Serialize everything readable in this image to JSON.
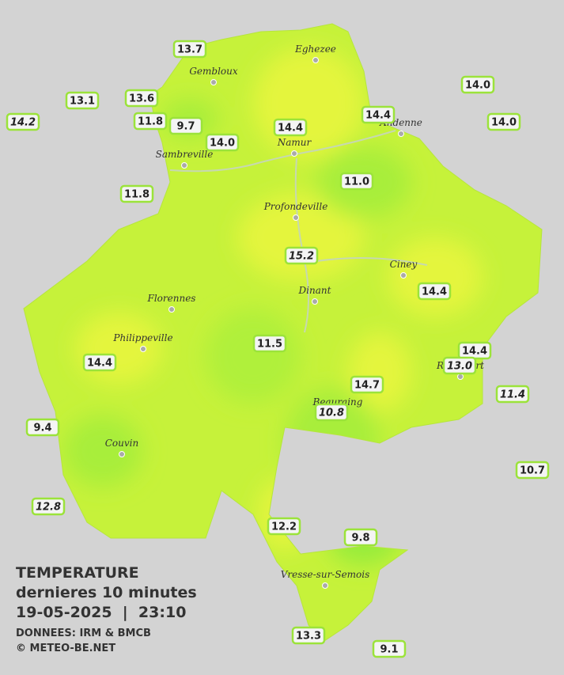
{
  "title": "TEMPERATURE",
  "subtitle": "dernieres 10 minutes",
  "datetime": "19-05-2025  |  23:10",
  "source": "DONNEES: IRM & BMCB",
  "credit": "© METEO-BE.NET",
  "cities": [
    "Eghezee",
    "Gembloux",
    "Andenne",
    "Namur",
    "Sambreville",
    "Profondeville",
    "Ciney",
    "Dinant",
    "Florennes",
    "Philippeville",
    "Rochefort",
    "Beauraing",
    "Couvin",
    "Vresse-sur-Semois"
  ],
  "stations": [
    {
      "label": "13.7",
      "italic": false
    },
    {
      "label": "13.1",
      "italic": false
    },
    {
      "label": "14.2",
      "italic": true
    },
    {
      "label": "13.6",
      "italic": false
    },
    {
      "label": "11.8",
      "italic": false
    },
    {
      "label": "9.7",
      "italic": false
    },
    {
      "label": "14.0",
      "italic": false
    },
    {
      "label": "14.4",
      "italic": false
    },
    {
      "label": "14.4",
      "italic": false
    },
    {
      "label": "14.0",
      "italic": false
    },
    {
      "label": "14.0",
      "italic": false
    },
    {
      "label": "11.0",
      "italic": false
    },
    {
      "label": "11.8",
      "italic": false
    },
    {
      "label": "15.2",
      "italic": true
    },
    {
      "label": "14.4",
      "italic": false
    },
    {
      "label": "11.5",
      "italic": false
    },
    {
      "label": "14.4",
      "italic": false
    },
    {
      "label": "14.4",
      "italic": false
    },
    {
      "label": "13.0",
      "italic": true
    },
    {
      "label": "14.7",
      "italic": false
    },
    {
      "label": "10.8",
      "italic": true
    },
    {
      "label": "11.4",
      "italic": true
    },
    {
      "label": "9.4",
      "italic": false
    },
    {
      "label": "10.7",
      "italic": false
    },
    {
      "label": "12.8",
      "italic": true
    },
    {
      "label": "12.2",
      "italic": false
    },
    {
      "label": "9.8",
      "italic": false
    },
    {
      "label": "13.3",
      "italic": false
    },
    {
      "label": "9.1",
      "italic": false
    }
  ]
}
